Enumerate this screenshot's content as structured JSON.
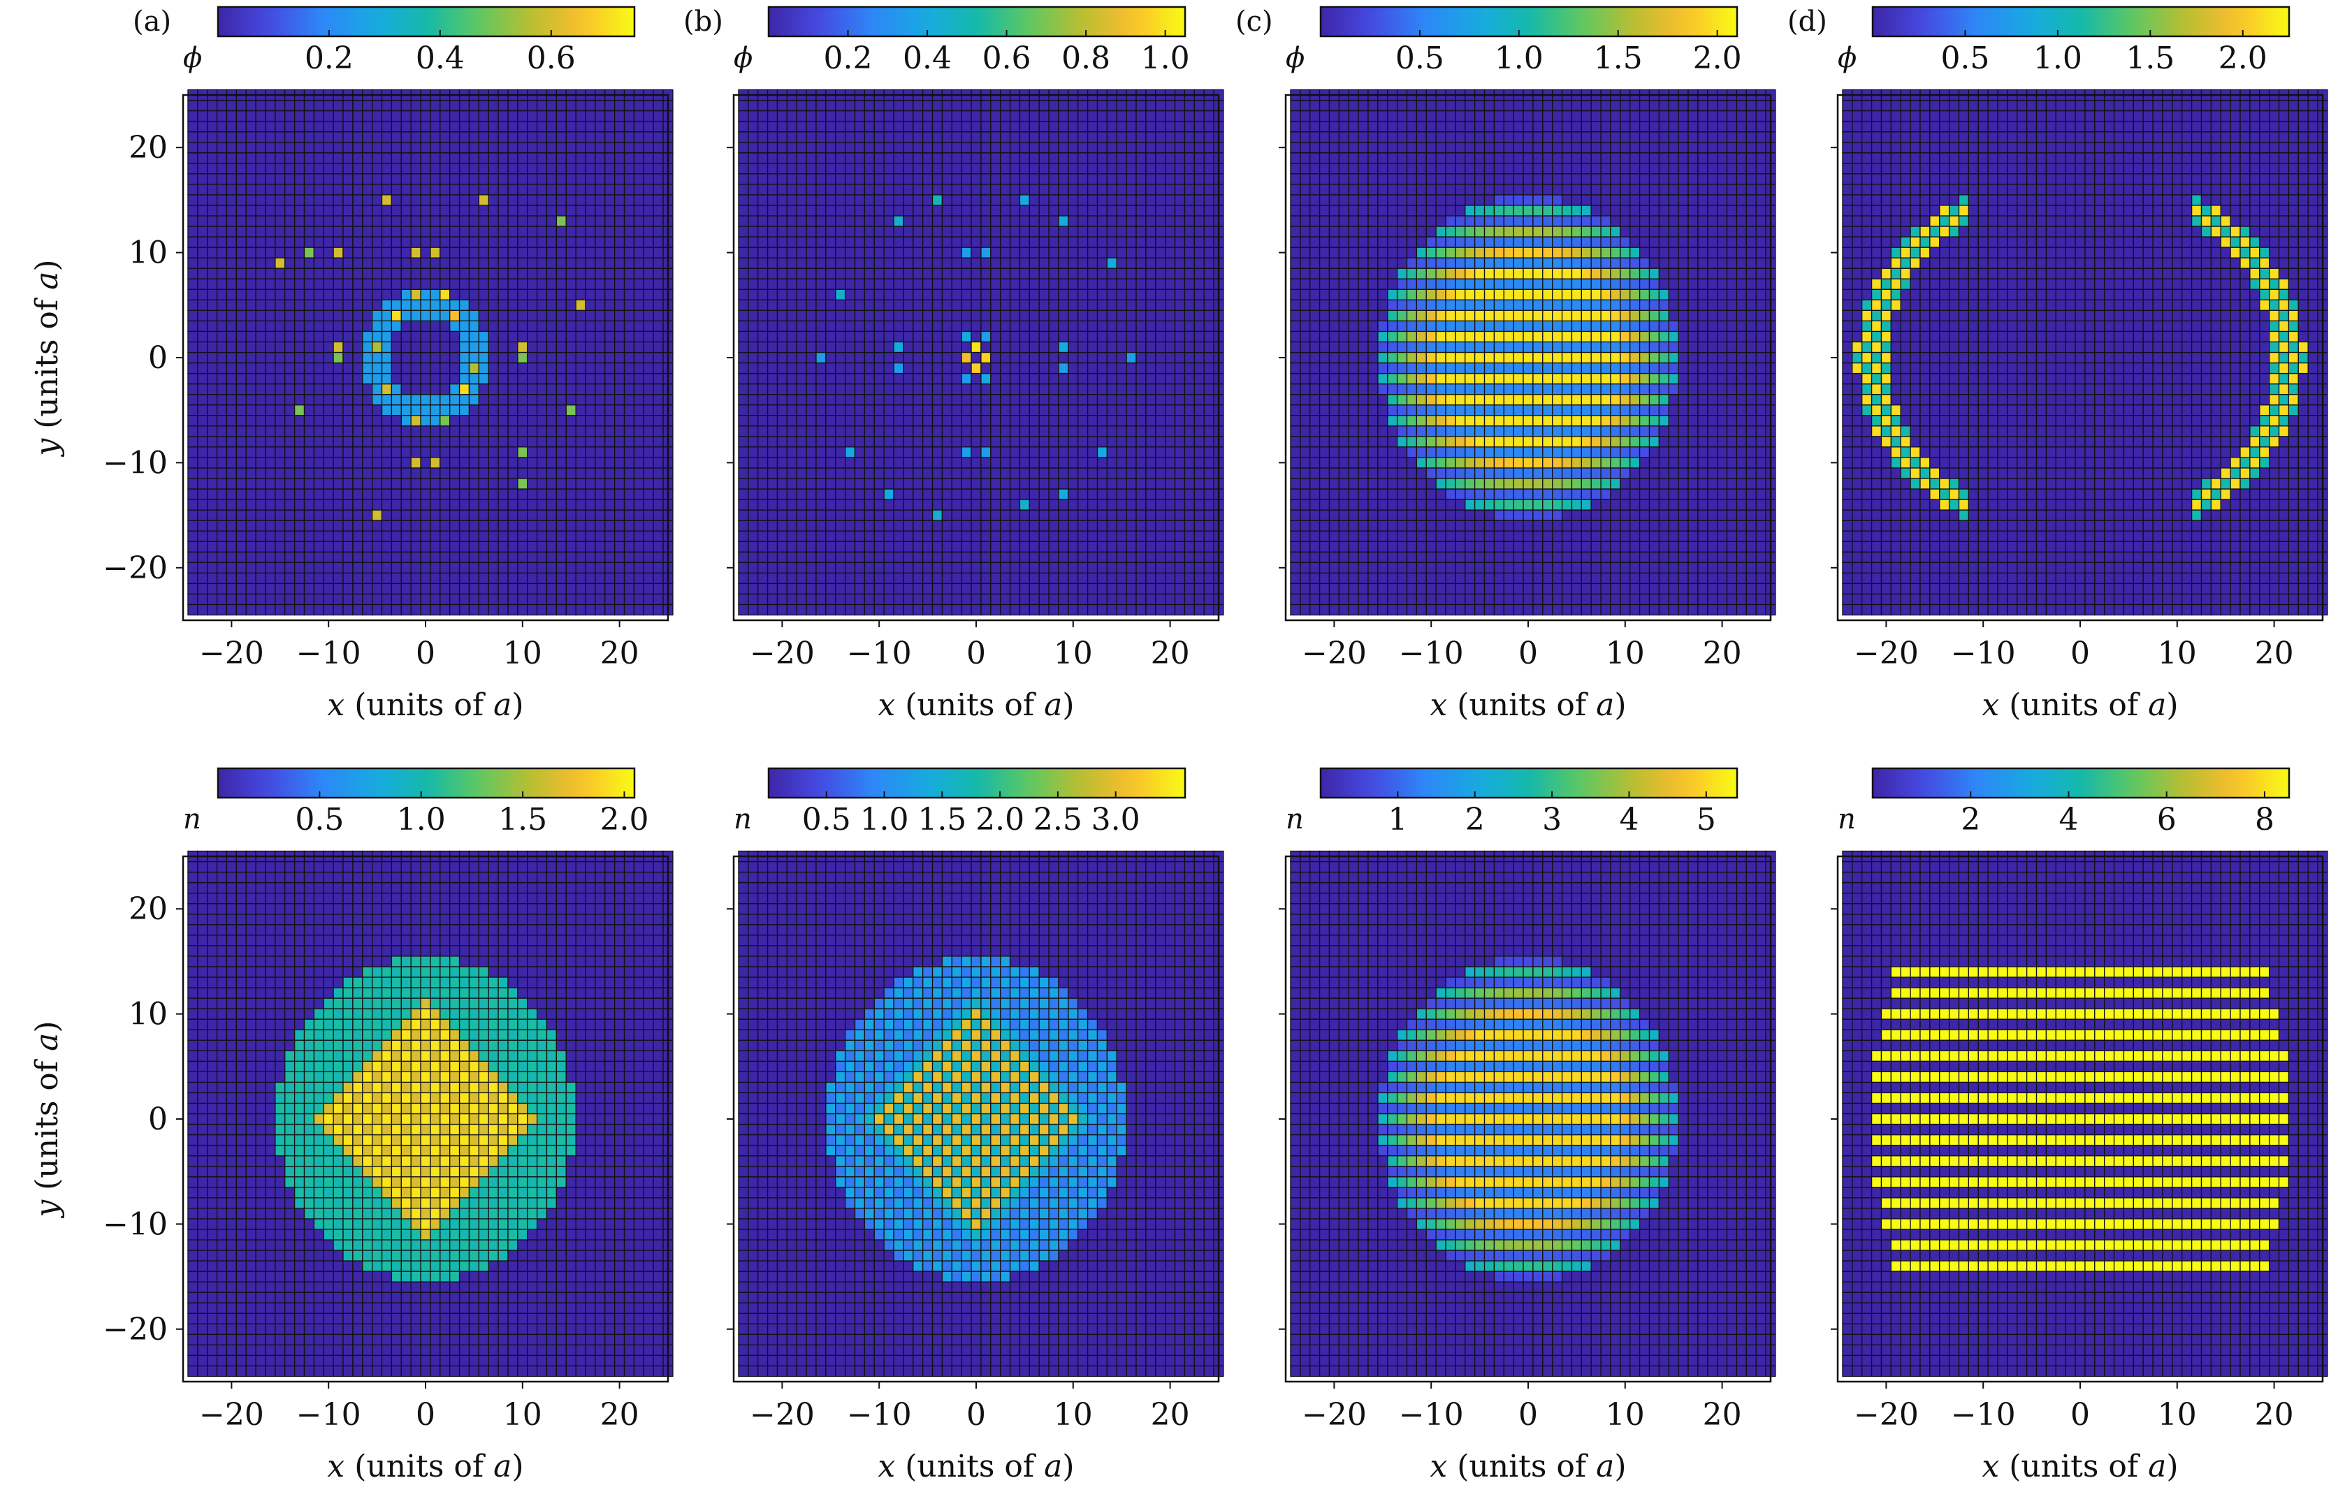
{
  "chart_data": [
    {
      "type": "heatmap",
      "panel_label": "(a)",
      "colorbar": {
        "symbol": "ϕ",
        "range": [
          0.0,
          0.75
        ],
        "ticks": [
          0.2,
          0.4,
          0.6
        ],
        "tick_labels": [
          "0.2",
          "0.4",
          "0.6"
        ]
      },
      "xlabel": "x (units of a)",
      "ylabel": "y (units of a)",
      "xlim": [
        -25,
        25
      ],
      "ylim": [
        -25,
        25
      ],
      "xticks": [
        -20,
        -10,
        0,
        10,
        20
      ],
      "xtick_labels": [
        "−20",
        "−10",
        "0",
        "10",
        "20"
      ],
      "yticks": [
        -20,
        -10,
        0,
        10,
        20
      ],
      "ytick_labels": [
        "−20",
        "−10",
        "0",
        "10",
        "20"
      ],
      "pattern": {
        "kind": "ring",
        "radius": 5.2,
        "width": 1.4,
        "amp": 0.25,
        "hot": [
          [
            -3,
            4,
            0.7
          ],
          [
            3,
            4,
            0.65
          ],
          [
            -4,
            -3,
            0.6
          ],
          [
            4,
            -3,
            0.7
          ],
          [
            -1,
            6,
            0.6
          ],
          [
            2,
            6,
            0.7
          ],
          [
            -1,
            -6,
            0.6
          ],
          [
            2,
            -6,
            0.5
          ],
          [
            -5,
            1,
            0.55
          ],
          [
            5,
            -1,
            0.55
          ]
        ],
        "sparse": [
          [
            -9,
            1,
            0.6
          ],
          [
            -9,
            0,
            0.5
          ],
          [
            10,
            1,
            0.6
          ],
          [
            10,
            0,
            0.5
          ],
          [
            -4,
            15,
            0.6
          ],
          [
            6,
            15,
            0.6
          ],
          [
            -9,
            10,
            0.6
          ],
          [
            10,
            -9,
            0.5
          ],
          [
            -5,
            -15,
            0.6
          ],
          [
            -13,
            -5,
            0.5
          ],
          [
            -15,
            9,
            0.6
          ],
          [
            16,
            5,
            0.6
          ],
          [
            14,
            13,
            0.5
          ],
          [
            15,
            -5,
            0.5
          ],
          [
            -1,
            10,
            0.6
          ],
          [
            1,
            10,
            0.6
          ],
          [
            -1,
            -10,
            0.6
          ],
          [
            1,
            -10,
            0.6
          ],
          [
            -12,
            10,
            0.5
          ],
          [
            10,
            -12,
            0.5
          ]
        ]
      }
    },
    {
      "type": "heatmap",
      "panel_label": "(b)",
      "colorbar": {
        "symbol": "ϕ",
        "range": [
          0.0,
          1.05
        ],
        "ticks": [
          0.2,
          0.4,
          0.6,
          0.8,
          1.0
        ],
        "tick_labels": [
          "0.2",
          "0.4",
          "0.6",
          "0.8",
          "1.0"
        ]
      },
      "xlabel": "x (units of a)",
      "ylabel": "",
      "xlim": [
        -25,
        25
      ],
      "ylim": [
        -25,
        25
      ],
      "xticks": [
        -20,
        -10,
        0,
        10,
        20
      ],
      "xtick_labels": [
        "−20",
        "−10",
        "0",
        "10",
        "20"
      ],
      "yticks": [
        -20,
        -10,
        0,
        10,
        20
      ],
      "ytick_labels": [],
      "pattern": {
        "kind": "sparse",
        "hot": [
          [
            0,
            1,
            1.0
          ],
          [
            0,
            -1,
            0.95
          ],
          [
            -1,
            0,
            0.9
          ],
          [
            1,
            0,
            0.95
          ],
          [
            -1,
            2,
            0.4
          ],
          [
            1,
            -2,
            0.4
          ],
          [
            1,
            2,
            0.35
          ],
          [
            -1,
            -2,
            0.35
          ]
        ],
        "sparse": [
          [
            -4,
            15,
            0.5
          ],
          [
            5,
            15,
            0.4
          ],
          [
            -8,
            13,
            0.45
          ],
          [
            9,
            13,
            0.4
          ],
          [
            -14,
            6,
            0.45
          ],
          [
            14,
            9,
            0.4
          ],
          [
            -13,
            -9,
            0.4
          ],
          [
            13,
            -9,
            0.4
          ],
          [
            -4,
            -15,
            0.45
          ],
          [
            5,
            -14,
            0.45
          ],
          [
            -9,
            -13,
            0.4
          ],
          [
            9,
            -13,
            0.4
          ],
          [
            -8,
            1,
            0.4
          ],
          [
            9,
            1,
            0.4
          ],
          [
            -8,
            -1,
            0.35
          ],
          [
            9,
            -1,
            0.35
          ],
          [
            -1,
            10,
            0.35
          ],
          [
            1,
            10,
            0.35
          ],
          [
            -1,
            -9,
            0.35
          ],
          [
            1,
            -9,
            0.35
          ],
          [
            -16,
            0,
            0.35
          ],
          [
            16,
            0,
            0.35
          ]
        ]
      }
    },
    {
      "type": "heatmap",
      "panel_label": "(c)",
      "colorbar": {
        "symbol": "ϕ",
        "range": [
          0.0,
          2.1
        ],
        "ticks": [
          0.5,
          1.0,
          1.5,
          2.0
        ],
        "tick_labels": [
          "0.5",
          "1.0",
          "1.5",
          "2.0"
        ]
      },
      "xlabel": "x (units of a)",
      "ylabel": "",
      "xlim": [
        -25,
        25
      ],
      "ylim": [
        -25,
        25
      ],
      "xticks": [
        -20,
        -10,
        0,
        10,
        20
      ],
      "xtick_labels": [
        "−20",
        "−10",
        "0",
        "10",
        "20"
      ],
      "yticks": [
        -20,
        -10,
        0,
        10,
        20
      ],
      "ytick_labels": [],
      "pattern": {
        "kind": "stripes",
        "radius": 15.5,
        "peak": 2.0,
        "low": 0.55,
        "stripe_period": 2
      }
    },
    {
      "type": "heatmap",
      "panel_label": "(d)",
      "colorbar": {
        "symbol": "ϕ",
        "range": [
          0.0,
          2.25
        ],
        "ticks": [
          0.5,
          1.0,
          1.5,
          2.0
        ],
        "tick_labels": [
          "0.5",
          "1.0",
          "1.5",
          "2.0"
        ]
      },
      "xlabel": "x (units of a)",
      "ylabel": "",
      "xlim": [
        -25,
        25
      ],
      "ylim": [
        -25,
        25
      ],
      "xticks": [
        -20,
        -10,
        0,
        10,
        20
      ],
      "xtick_labels": [
        "−20",
        "−10",
        "0",
        "10",
        "20"
      ],
      "yticks": [
        -20,
        -10,
        0,
        10,
        20
      ],
      "ytick_labels": [],
      "pattern": {
        "kind": "arcs",
        "radius": 21.5,
        "width": 1.2,
        "x_extent": 15,
        "peak": 2.1,
        "low": 1.1
      }
    },
    {
      "type": "heatmap",
      "panel_label": "",
      "colorbar": {
        "symbol": "n",
        "range": [
          0.0,
          2.05
        ],
        "ticks": [
          0.5,
          1.0,
          1.5,
          2.0
        ],
        "tick_labels": [
          "0.5",
          "1.0",
          "1.5",
          "2.0"
        ]
      },
      "xlabel": "x (units of a)",
      "ylabel": "y (units of a)",
      "xlim": [
        -25,
        25
      ],
      "ylim": [
        -25,
        25
      ],
      "xticks": [
        -20,
        -10,
        0,
        10,
        20
      ],
      "xtick_labels": [
        "−20",
        "−10",
        "0",
        "10",
        "20"
      ],
      "yticks": [
        -20,
        -10,
        0,
        10,
        20
      ],
      "ytick_labels": [
        "−20",
        "−10",
        "0",
        "10",
        "20"
      ],
      "pattern": {
        "kind": "density",
        "outer_radius": 15.5,
        "outer_value": 1.05,
        "inner_diamond": 11,
        "inner_value": 1.95,
        "checker": true
      }
    },
    {
      "type": "heatmap",
      "panel_label": "",
      "colorbar": {
        "symbol": "n",
        "range": [
          0.0,
          3.6
        ],
        "ticks": [
          0.5,
          1.0,
          1.5,
          2.0,
          2.5,
          3.0
        ],
        "tick_labels": [
          "0.5",
          "1.0",
          "1.5",
          "2.0",
          "2.5",
          "3.0"
        ]
      },
      "xlabel": "x (units of a)",
      "ylabel": "",
      "xlim": [
        -25,
        25
      ],
      "ylim": [
        -25,
        25
      ],
      "xticks": [
        -20,
        -10,
        0,
        10,
        20
      ],
      "xtick_labels": [
        "−20",
        "−10",
        "0",
        "10",
        "20"
      ],
      "yticks": [
        -20,
        -10,
        0,
        10,
        20
      ],
      "ytick_labels": [],
      "pattern": {
        "kind": "checker_diamond",
        "outer_radius": 15.5,
        "outer_value": 1.1,
        "inner_diamond": 11,
        "inner_value": 3.0
      }
    },
    {
      "type": "heatmap",
      "panel_label": "",
      "colorbar": {
        "symbol": "n",
        "range": [
          0.0,
          5.4
        ],
        "ticks": [
          1,
          2,
          3,
          4,
          5
        ],
        "tick_labels": [
          "1",
          "2",
          "3",
          "4",
          "5"
        ]
      },
      "xlabel": "x (units of a)",
      "ylabel": "",
      "xlim": [
        -25,
        25
      ],
      "ylim": [
        -25,
        25
      ],
      "xticks": [
        -20,
        -10,
        0,
        10,
        20
      ],
      "xtick_labels": [
        "−20",
        "−10",
        "0",
        "10",
        "20"
      ],
      "yticks": [
        -20,
        -10,
        0,
        10,
        20
      ],
      "ytick_labels": [],
      "pattern": {
        "kind": "stripes",
        "radius": 15.5,
        "peak": 5.0,
        "low": 1.3,
        "stripe_period": 2
      }
    },
    {
      "type": "heatmap",
      "panel_label": "",
      "colorbar": {
        "symbol": "n",
        "range": [
          0.0,
          8.5
        ],
        "ticks": [
          2,
          4,
          6,
          8
        ],
        "tick_labels": [
          "2",
          "4",
          "6",
          "8"
        ]
      },
      "xlabel": "x (units of a)",
      "ylabel": "",
      "xlim": [
        -25,
        25
      ],
      "ylim": [
        -25,
        25
      ],
      "xticks": [
        -20,
        -10,
        0,
        10,
        20
      ],
      "xtick_labels": [
        "−20",
        "−10",
        "0",
        "10",
        "20"
      ],
      "yticks": [
        -20,
        -10,
        0,
        10,
        20
      ],
      "ytick_labels": [],
      "pattern": {
        "kind": "stripes_flat",
        "radius": 21.5,
        "y_extent": 15,
        "peak": 8.5,
        "low": 0.0,
        "stripe_period": 2
      }
    }
  ]
}
